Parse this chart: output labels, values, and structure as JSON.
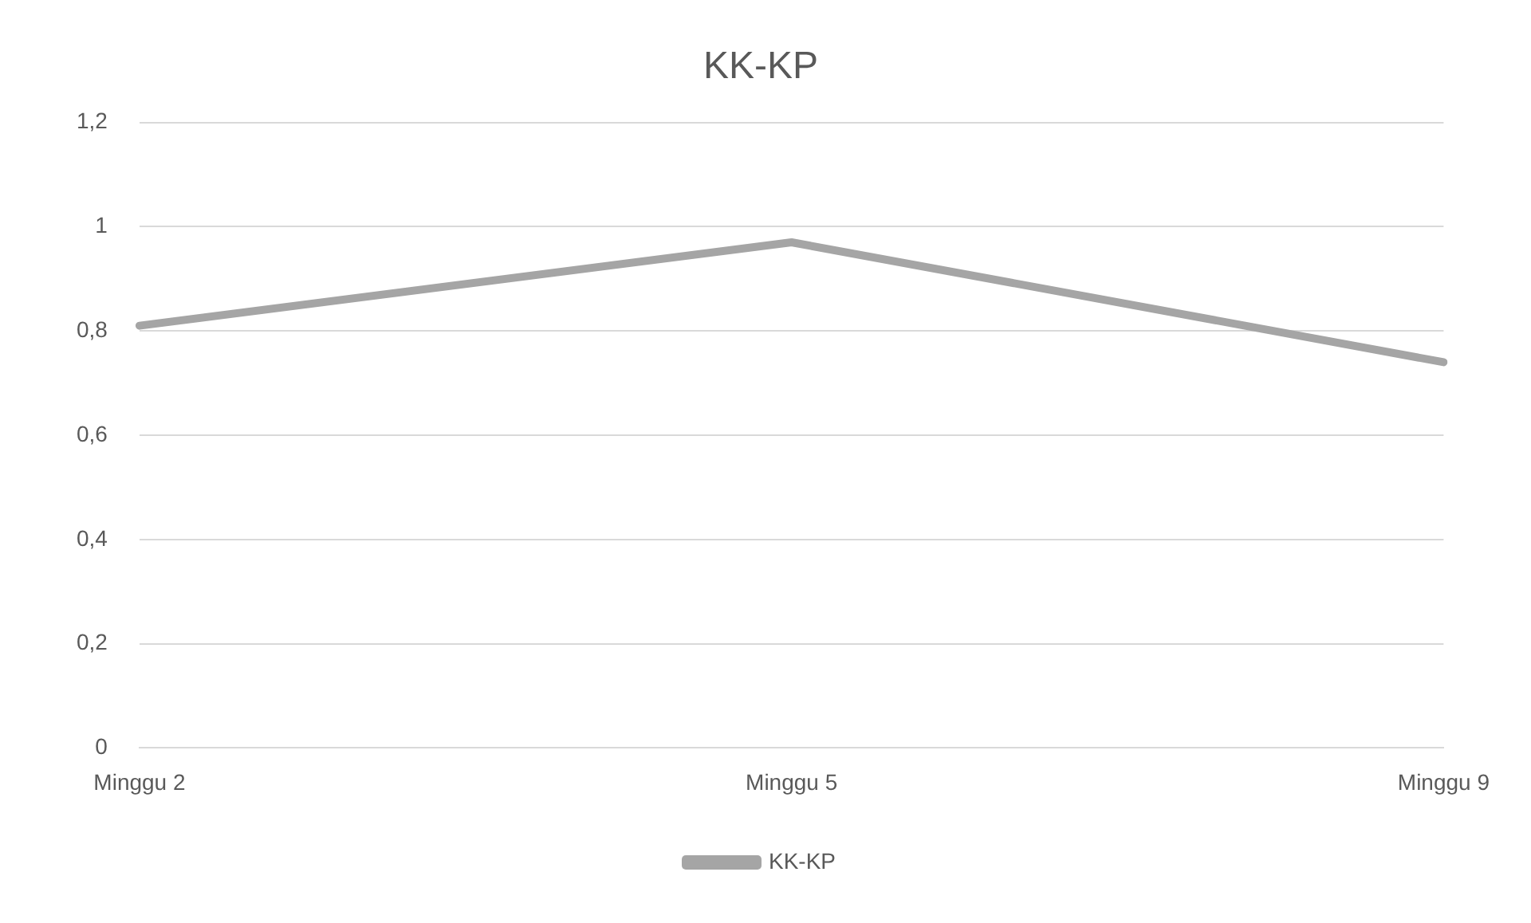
{
  "chart_data": {
    "type": "line",
    "title": "KK-KP",
    "categories": [
      "Minggu 2",
      "Minggu 5",
      "Minggu 9"
    ],
    "series": [
      {
        "name": "KK-KP",
        "color": "#a5a5a5",
        "values": [
          0.81,
          0.97,
          0.74
        ]
      }
    ],
    "ylim": [
      0,
      1.2
    ],
    "yticks": [
      0,
      {
        "value": 0.2,
        "label": "0,2"
      },
      {
        "value": 0.4,
        "label": "0,4"
      },
      {
        "value": 0.6,
        "label": "0,6"
      },
      {
        "value": 0.8,
        "label": "0,8"
      },
      1,
      {
        "value": 1.2,
        "label": "1,2"
      }
    ],
    "grid": "y",
    "legend": "bottom",
    "marker": "none",
    "line_style": "solid"
  }
}
